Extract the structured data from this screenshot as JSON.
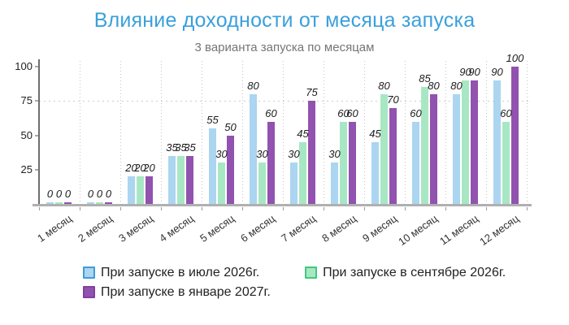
{
  "chart_data": {
    "type": "bar",
    "title": "Влияние доходности от месяца запуска",
    "subtitle": "3 варианта запуска по месяцам",
    "categories": [
      "1 месяц",
      "2 месяц",
      "3 месяц",
      "4 месяц",
      "5 месяц",
      "6 месяц",
      "7 месяц",
      "8 месяц",
      "9 месяц",
      "10 месяц",
      "11 месяц",
      "12 месяц"
    ],
    "series": [
      {
        "name": "При запуске в июле 2026г.",
        "fill": "#abd5f0",
        "border": "#3f9cd9",
        "values": [
          0,
          0,
          20,
          35,
          55,
          80,
          30,
          30,
          45,
          60,
          80,
          90
        ]
      },
      {
        "name": "При запуске в сентябре 2026г.",
        "fill": "#a8e7c4",
        "border": "#43c77c",
        "values": [
          0,
          0,
          20,
          35,
          30,
          30,
          45,
          60,
          80,
          85,
          90,
          60
        ]
      },
      {
        "name": "При запуске в январе 2027г.",
        "fill": "#9153af",
        "border": "#82409e",
        "values": [
          0,
          0,
          20,
          35,
          50,
          60,
          75,
          60,
          70,
          80,
          90,
          100
        ]
      }
    ],
    "ylim": [
      0,
      100
    ],
    "yticks": [
      25,
      50,
      75,
      100
    ],
    "h_gridline_value": 75,
    "grid": "dotted vertical lines at category boundaries, dotted horizontal line at 75",
    "legend_position": "bottom",
    "data_labels": "italic values above each bar"
  },
  "colors": {
    "title": "#3aa0dc",
    "subtitle": "#757575"
  }
}
